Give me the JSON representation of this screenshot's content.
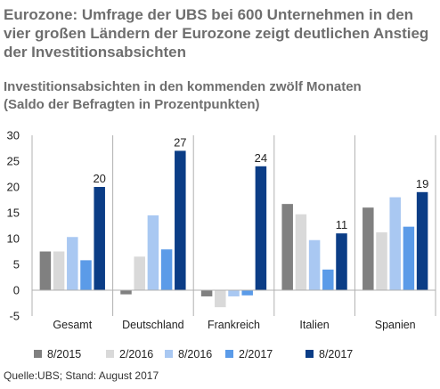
{
  "title": "Eurozone: Umfrage der UBS bei 600 Unternehmen in den vier großen Ländern der Eurozone zeigt deutlichen Anstieg der Investitionsabsichten",
  "subtitle_line1": "Investitionsabsichten in den kommenden zwölf Monaten",
  "subtitle_line2": "(Saldo der Befragten in Prozentpunkten)",
  "source": "Quelle:UBS; Stand: August 2017",
  "chart_data": {
    "type": "bar",
    "categories": [
      "Gesamt",
      "Deutschland",
      "Frankreich",
      "Italien",
      "Spanien"
    ],
    "series": [
      {
        "name": "8/2015",
        "color": "#808080",
        "values": [
          7.5,
          -0.8,
          -1.2,
          16.7,
          16.0
        ]
      },
      {
        "name": "2/2016",
        "color": "#d9d9d9",
        "values": [
          7.5,
          6.5,
          -3.3,
          14.7,
          11.2
        ]
      },
      {
        "name": "8/2016",
        "color": "#a9c8f2",
        "values": [
          10.3,
          14.5,
          -1.2,
          9.7,
          18.0
        ]
      },
      {
        "name": "2/2017",
        "color": "#5b9be8",
        "values": [
          5.8,
          7.9,
          -1.0,
          4.0,
          12.3
        ]
      },
      {
        "name": "8/2017",
        "color": "#0b3d86",
        "values": [
          20,
          27,
          24,
          11,
          19
        ]
      }
    ],
    "data_labels": [
      "20",
      "27",
      "24",
      "11",
      "19"
    ],
    "ylim": [
      -5,
      30
    ],
    "yticks": [
      "30",
      "25",
      "20",
      "15",
      "10",
      "5",
      "0",
      "-5"
    ],
    "grid": false,
    "legend_position": "bottom"
  }
}
